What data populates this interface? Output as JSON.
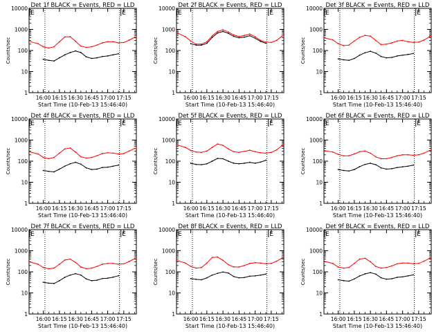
{
  "common": {
    "xlabel": "Start Time (10-Feb-13 15:46:40)",
    "ylabel": "Counts/sec",
    "xticks": [
      "16:00",
      "16:15",
      "16:30",
      "16:45",
      "17:00",
      "17:15"
    ],
    "xtick_minutes": [
      0,
      15,
      30,
      45,
      60,
      75
    ],
    "xlim_minutes": [
      -13.3,
      86.7
    ],
    "ylim": [
      1,
      10000
    ],
    "yscale": "log",
    "yticks": [
      "1",
      "10",
      "100",
      "1000",
      "10000"
    ],
    "flag_markers": [
      {
        "label": "E",
        "x_min": -13.3
      },
      {
        "label": "E",
        "x_min": 72
      }
    ],
    "dotted_line_minutes": [
      1.5,
      71
    ],
    "colors": {
      "events": "#000000",
      "lld": "#ff0000"
    }
  },
  "chart_data": [
    {
      "type": "line",
      "title": "Det 1f BLACK = Events, RED = LLD",
      "xlabel": "Start Time (10-Feb-13 15:46:40)",
      "ylabel": "Counts/sec",
      "ylim": [
        1,
        10000
      ],
      "yscale": "log",
      "x_minutes": [
        -13.3,
        -5,
        0,
        5,
        10,
        15,
        20,
        25,
        30,
        35,
        40,
        45,
        50,
        55,
        60,
        65,
        70,
        75,
        80,
        85,
        86.7
      ],
      "series": [
        {
          "name": "LLD",
          "values": [
            270,
            210,
            150,
            130,
            150,
            260,
            440,
            450,
            270,
            160,
            140,
            150,
            180,
            230,
            260,
            260,
            230,
            240,
            310,
            420,
            420
          ]
        },
        {
          "values": [
            null,
            null,
            38,
            34,
            32,
            45,
            62,
            80,
            95,
            80,
            50,
            42,
            45,
            52,
            55,
            62,
            70,
            null,
            null,
            null,
            null
          ]
        }
      ]
    },
    {
      "type": "line",
      "title": "Det 2f BLACK = Events, RED = LLD",
      "xlabel": "Start Time (10-Feb-13 15:46:40)",
      "ylabel": "Counts/sec",
      "ylim": [
        1,
        10000
      ],
      "yscale": "log",
      "x_minutes": [
        -13.3,
        -5,
        0,
        5,
        10,
        15,
        20,
        25,
        30,
        35,
        40,
        45,
        50,
        55,
        60,
        65,
        70,
        75,
        80,
        85,
        86.7
      ],
      "series": [
        {
          "name": "LLD",
          "values": [
            700,
            450,
            280,
            200,
            200,
            260,
            500,
            800,
            950,
            750,
            550,
            460,
            520,
            600,
            450,
            300,
            250,
            240,
            300,
            480,
            520
          ]
        },
        {
          "values": [
            null,
            null,
            210,
            180,
            180,
            220,
            420,
            680,
            800,
            650,
            470,
            400,
            430,
            500,
            380,
            270,
            220,
            null,
            null,
            null,
            null
          ]
        }
      ]
    },
    {
      "type": "line",
      "title": "Det 3f BLACK = Events, RED = LLD",
      "xlabel": "Start Time (10-Feb-13 15:46:40)",
      "ylabel": "Counts/sec",
      "ylim": [
        1,
        10000
      ],
      "yscale": "log",
      "x_minutes": [
        -13.3,
        -5,
        0,
        5,
        10,
        15,
        20,
        25,
        30,
        35,
        40,
        45,
        50,
        55,
        60,
        65,
        70,
        75,
        80,
        85,
        86.7
      ],
      "series": [
        {
          "name": "LLD",
          "values": [
            400,
            320,
            210,
            170,
            180,
            280,
            420,
            520,
            480,
            300,
            190,
            200,
            230,
            280,
            300,
            260,
            240,
            250,
            310,
            450,
            480
          ]
        },
        {
          "values": [
            null,
            null,
            40,
            36,
            34,
            42,
            60,
            78,
            92,
            75,
            52,
            45,
            47,
            55,
            60,
            65,
            72,
            null,
            null,
            null,
            null
          ]
        }
      ]
    },
    {
      "type": "line",
      "title": "Det 4f BLACK = Events, RED = LLD",
      "xlabel": "Start Time (10-Feb-13 15:46:40)",
      "ylabel": "Counts/sec",
      "ylim": [
        1,
        10000
      ],
      "yscale": "log",
      "x_minutes": [
        -13.3,
        -5,
        0,
        5,
        10,
        15,
        20,
        25,
        30,
        35,
        40,
        45,
        50,
        55,
        60,
        65,
        70,
        75,
        80,
        85,
        86.7
      ],
      "series": [
        {
          "name": "LLD",
          "values": [
            280,
            220,
            150,
            130,
            150,
            240,
            380,
            420,
            270,
            160,
            140,
            150,
            180,
            230,
            250,
            240,
            220,
            230,
            300,
            400,
            400
          ]
        },
        {
          "values": [
            null,
            null,
            36,
            33,
            31,
            42,
            58,
            75,
            88,
            72,
            48,
            40,
            42,
            50,
            52,
            58,
            65,
            null,
            null,
            null,
            null
          ]
        }
      ]
    },
    {
      "type": "line",
      "title": "Det 5f BLACK = Events, RED = LLD",
      "xlabel": "Start Time (10-Feb-13 15:46:40)",
      "ylabel": "Counts/sec",
      "ylim": [
        1,
        10000
      ],
      "yscale": "log",
      "x_minutes": [
        -13.3,
        -5,
        0,
        5,
        10,
        15,
        20,
        25,
        30,
        35,
        40,
        45,
        50,
        55,
        60,
        65,
        70,
        75,
        80,
        85,
        86.7
      ],
      "series": [
        {
          "name": "LLD",
          "values": [
            600,
            450,
            320,
            270,
            260,
            300,
            450,
            650,
            560,
            380,
            280,
            260,
            290,
            330,
            280,
            250,
            240,
            260,
            340,
            550,
            600
          ]
        },
        {
          "values": [
            null,
            null,
            80,
            70,
            68,
            75,
            100,
            135,
            130,
            100,
            80,
            75,
            80,
            88,
            80,
            90,
            110,
            null,
            null,
            null,
            null
          ]
        }
      ]
    },
    {
      "type": "line",
      "title": "Det 6f BLACK = Events, RED = LLD",
      "xlabel": "Start Time (10-Feb-13 15:46:40)",
      "ylabel": "Counts/sec",
      "ylim": [
        1,
        10000
      ],
      "yscale": "log",
      "x_minutes": [
        -13.3,
        -5,
        0,
        5,
        10,
        15,
        20,
        25,
        30,
        35,
        40,
        45,
        50,
        55,
        60,
        65,
        70,
        75,
        80,
        85,
        86.7
      ],
      "series": [
        {
          "name": "LLD",
          "values": [
            320,
            270,
            210,
            180,
            180,
            220,
            280,
            300,
            240,
            160,
            130,
            130,
            150,
            180,
            200,
            200,
            190,
            200,
            240,
            320,
            330
          ]
        },
        {
          "values": [
            null,
            null,
            40,
            36,
            34,
            40,
            55,
            70,
            80,
            68,
            48,
            42,
            44,
            50,
            54,
            58,
            65,
            null,
            null,
            null,
            null
          ]
        }
      ]
    },
    {
      "type": "line",
      "title": "Det 7f BLACK = Events, RED = LLD",
      "xlabel": "Start Time (10-Feb-13 15:46:40)",
      "ylabel": "Counts/sec",
      "ylim": [
        1,
        10000
      ],
      "yscale": "log",
      "x_minutes": [
        -13.3,
        -5,
        0,
        5,
        10,
        15,
        20,
        25,
        30,
        35,
        40,
        45,
        50,
        55,
        60,
        65,
        70,
        75,
        80,
        85,
        86.7
      ],
      "series": [
        {
          "name": "LLD",
          "values": [
            300,
            230,
            160,
            140,
            150,
            230,
            360,
            400,
            280,
            170,
            140,
            150,
            180,
            230,
            250,
            250,
            230,
            240,
            310,
            420,
            420
          ]
        },
        {
          "values": [
            null,
            null,
            32,
            29,
            28,
            38,
            55,
            70,
            82,
            70,
            46,
            38,
            40,
            48,
            50,
            56,
            65,
            null,
            null,
            null,
            null
          ]
        }
      ]
    },
    {
      "type": "line",
      "title": "Det 8f BLACK = Events, RED = LLD",
      "xlabel": "Start Time (10-Feb-13 15:46:40)",
      "ylabel": "Counts/sec",
      "ylim": [
        1,
        10000
      ],
      "yscale": "log",
      "x_minutes": [
        -13.3,
        -5,
        0,
        5,
        10,
        15,
        20,
        25,
        30,
        35,
        40,
        45,
        50,
        55,
        60,
        65,
        70,
        75,
        80,
        85,
        86.7
      ],
      "series": [
        {
          "name": "LLD",
          "values": [
            350,
            260,
            180,
            150,
            160,
            260,
            480,
            500,
            350,
            220,
            170,
            170,
            200,
            250,
            270,
            260,
            240,
            250,
            320,
            440,
            450
          ]
        },
        {
          "values": [
            null,
            null,
            48,
            44,
            42,
            52,
            70,
            85,
            98,
            88,
            60,
            52,
            54,
            62,
            64,
            70,
            78,
            null,
            null,
            null,
            null
          ]
        }
      ]
    },
    {
      "type": "line",
      "title": "Det 9f BLACK = Events, RED = LLD",
      "xlabel": "Start Time (10-Feb-13 15:46:40)",
      "ylabel": "Counts/sec",
      "ylim": [
        1,
        10000
      ],
      "yscale": "log",
      "x_minutes": [
        -13.3,
        -5,
        0,
        5,
        10,
        15,
        20,
        25,
        30,
        35,
        40,
        45,
        50,
        55,
        60,
        65,
        70,
        75,
        80,
        85,
        86.7
      ],
      "series": [
        {
          "name": "LLD",
          "values": [
            320,
            250,
            170,
            150,
            160,
            250,
            400,
            440,
            300,
            180,
            150,
            160,
            190,
            240,
            260,
            260,
            240,
            250,
            320,
            430,
            440
          ]
        },
        {
          "values": [
            null,
            null,
            42,
            38,
            36,
            46,
            64,
            80,
            92,
            78,
            52,
            45,
            47,
            55,
            58,
            64,
            72,
            null,
            null,
            null,
            null
          ]
        }
      ]
    }
  ]
}
